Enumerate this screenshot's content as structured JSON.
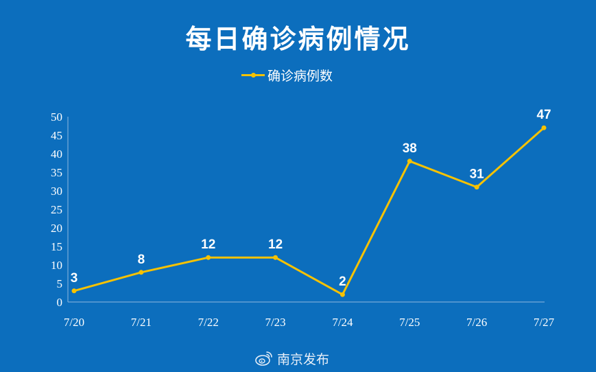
{
  "chart_data": {
    "type": "line",
    "title": "每日确诊病例情况",
    "xlabel": "",
    "ylabel": "",
    "categories": [
      "7/20",
      "7/21",
      "7/22",
      "7/23",
      "7/24",
      "7/25",
      "7/26",
      "7/27"
    ],
    "series": [
      {
        "name": "确诊病例数",
        "values": [
          3,
          8,
          12,
          12,
          2,
          38,
          31,
          47
        ],
        "color": "#f7c200"
      }
    ],
    "ylim": [
      0,
      50
    ],
    "yticks": [
      0,
      5,
      10,
      15,
      20,
      25,
      30,
      35,
      40,
      45,
      50
    ],
    "grid": false,
    "legend_position": "top-center",
    "data_labels": true,
    "background_color": "#0c6ebd"
  },
  "watermark": {
    "text": "南京发布",
    "icon": "weibo-icon"
  }
}
